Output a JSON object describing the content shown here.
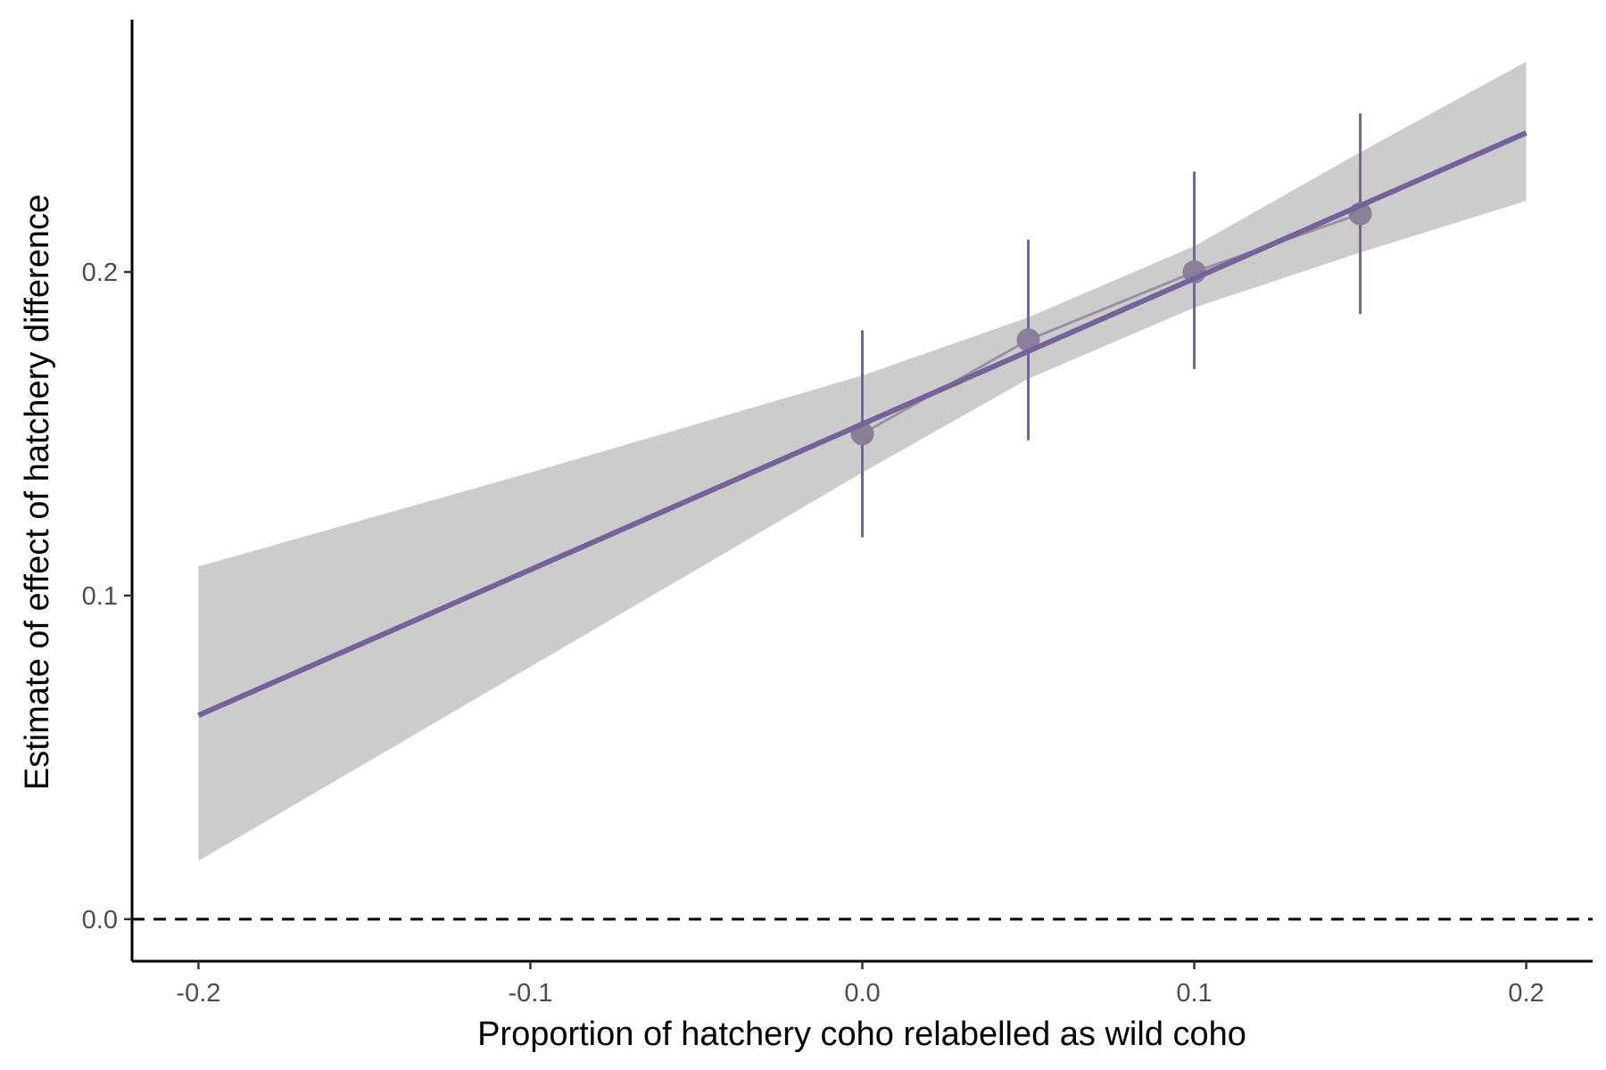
{
  "chart_data": {
    "type": "scatter",
    "title": "",
    "xlabel": "Proportion of hatchery coho relabelled as wild coho",
    "ylabel": "Estimate of effect of hatchery difference",
    "xlim": [
      -0.22,
      0.22
    ],
    "ylim": [
      -0.013,
      0.278
    ],
    "x_ticks": [
      -0.2,
      -0.1,
      0.0,
      0.1,
      0.2
    ],
    "x_tick_labels": [
      "-0.2",
      "-0.1",
      "0.0",
      "0.1",
      "0.2"
    ],
    "y_ticks": [
      0.0,
      0.1,
      0.2
    ],
    "y_tick_labels": [
      "0.0",
      "0.1",
      "0.2"
    ],
    "grid": false,
    "legend": "none",
    "reference_line": {
      "y": 0.0,
      "style": "dashed"
    },
    "points": [
      {
        "x": 0.0,
        "y": 0.15,
        "ymin": 0.118,
        "ymax": 0.182
      },
      {
        "x": 0.05,
        "y": 0.179,
        "ymin": 0.148,
        "ymax": 0.21
      },
      {
        "x": 0.1,
        "y": 0.2,
        "ymin": 0.17,
        "ymax": 0.231
      },
      {
        "x": 0.15,
        "y": 0.218,
        "ymin": 0.187,
        "ymax": 0.249
      }
    ],
    "fit_line": {
      "x": [
        -0.2,
        0.2
      ],
      "y": [
        0.063,
        0.243
      ]
    },
    "confidence_band": {
      "x": [
        -0.2,
        -0.1,
        0.0,
        0.05,
        0.1,
        0.15,
        0.2
      ],
      "lower": [
        0.018,
        0.078,
        0.138,
        0.167,
        0.189,
        0.206,
        0.222
      ],
      "upper": [
        0.109,
        0.138,
        0.168,
        0.186,
        0.208,
        0.237,
        0.265
      ]
    },
    "colors": {
      "fit_line": "#76629a",
      "error_bars": "#76629a",
      "points": "#8b7e99",
      "connector": "#9a90a4",
      "band": "#cccccc",
      "axis": "#000000"
    }
  }
}
